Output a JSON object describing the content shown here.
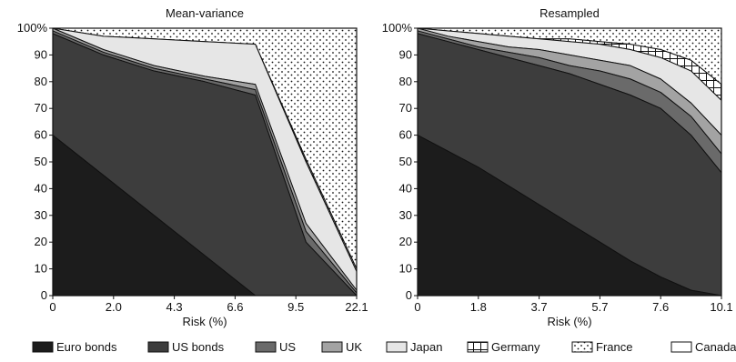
{
  "chart_data": [
    {
      "type": "area",
      "title": "Mean-variance",
      "xlabel": "Risk (%)",
      "ylabel": "",
      "ylim": [
        0,
        100
      ],
      "x_tick_labels": [
        "0",
        "2.0",
        "4.3",
        "6.6",
        "9.5",
        "22.1"
      ],
      "y_tick_labels": [
        "0",
        "10",
        "20",
        "30",
        "40",
        "50",
        "60",
        "70",
        "80",
        "90",
        "100%"
      ],
      "x_positions": [
        0,
        1,
        2,
        3,
        4,
        5,
        6
      ],
      "cumulative_top": [
        {
          "name": "Euro bonds",
          "values": [
            60,
            45,
            30,
            15,
            0,
            0,
            0
          ]
        },
        {
          "name": "US bonds",
          "values": [
            98,
            90,
            84,
            80,
            75,
            20,
            0
          ]
        },
        {
          "name": "US",
          "values": [
            99,
            91,
            85,
            81,
            77,
            24,
            1
          ]
        },
        {
          "name": "UK",
          "values": [
            100,
            92,
            86,
            82,
            79,
            27,
            2
          ]
        },
        {
          "name": "Japan",
          "values": [
            100,
            97,
            96,
            95,
            94,
            50,
            9
          ]
        },
        {
          "name": "Germany",
          "values": [
            100,
            97,
            96,
            95,
            94,
            51,
            10
          ]
        },
        {
          "name": "France",
          "values": [
            100,
            100,
            100,
            100,
            100,
            100,
            100
          ]
        },
        {
          "name": "Canada",
          "values": [
            100,
            100,
            100,
            100,
            100,
            100,
            100
          ]
        }
      ]
    },
    {
      "type": "area",
      "title": "Resampled",
      "xlabel": "Risk (%)",
      "ylabel": "",
      "ylim": [
        0,
        100
      ],
      "x_tick_labels": [
        "0",
        "1.8",
        "3.7",
        "5.7",
        "7.6",
        "10.1"
      ],
      "y_tick_labels": [
        "0",
        "10",
        "20",
        "30",
        "40",
        "50",
        "60",
        "70",
        "80",
        "90",
        "100%"
      ],
      "x_positions": [
        0,
        1,
        2,
        3,
        4,
        5,
        6,
        7,
        8,
        9,
        10
      ],
      "cumulative_top": [
        {
          "name": "Euro bonds",
          "values": [
            60,
            54,
            48,
            41,
            34,
            27,
            20,
            13,
            7,
            2,
            0
          ]
        },
        {
          "name": "US bonds",
          "values": [
            98,
            95,
            92,
            89,
            86,
            83,
            79,
            75,
            70,
            60,
            46
          ]
        },
        {
          "name": "US",
          "values": [
            99,
            96,
            93,
            91,
            89,
            86,
            84,
            81,
            76,
            67,
            53
          ]
        },
        {
          "name": "UK",
          "values": [
            100,
            97,
            95,
            93,
            92,
            90,
            88,
            86,
            81,
            72,
            60
          ]
        },
        {
          "name": "Japan",
          "values": [
            100,
            99,
            98,
            97,
            96,
            95,
            94,
            92,
            89,
            84,
            73
          ]
        },
        {
          "name": "Germany",
          "values": [
            100,
            99,
            98,
            97,
            96,
            96,
            95,
            94,
            92,
            88,
            79
          ]
        },
        {
          "name": "France",
          "values": [
            100,
            100,
            100,
            100,
            100,
            100,
            100,
            100,
            100,
            100,
            100
          ]
        },
        {
          "name": "Canada",
          "values": [
            100,
            100,
            100,
            100,
            100,
            100,
            100,
            100,
            100,
            100,
            100
          ]
        }
      ]
    }
  ],
  "legend": {
    "placement": "bottom",
    "items": [
      {
        "label": "Euro bonds",
        "fill": "#1c1c1c",
        "pattern": "solid"
      },
      {
        "label": "US bonds",
        "fill": "#3d3d3d",
        "pattern": "solid"
      },
      {
        "label": "US",
        "fill": "#6a6a6a",
        "pattern": "solid"
      },
      {
        "label": "UK",
        "fill": "#a3a3a3",
        "pattern": "solid"
      },
      {
        "label": "Japan",
        "fill": "#e6e6e6",
        "pattern": "solid"
      },
      {
        "label": "Germany",
        "fill": "#ffffff",
        "pattern": "grid"
      },
      {
        "label": "France",
        "fill": "#ffffff",
        "pattern": "dots"
      },
      {
        "label": "Canada",
        "fill": "#ffffff",
        "pattern": "solid"
      }
    ]
  }
}
